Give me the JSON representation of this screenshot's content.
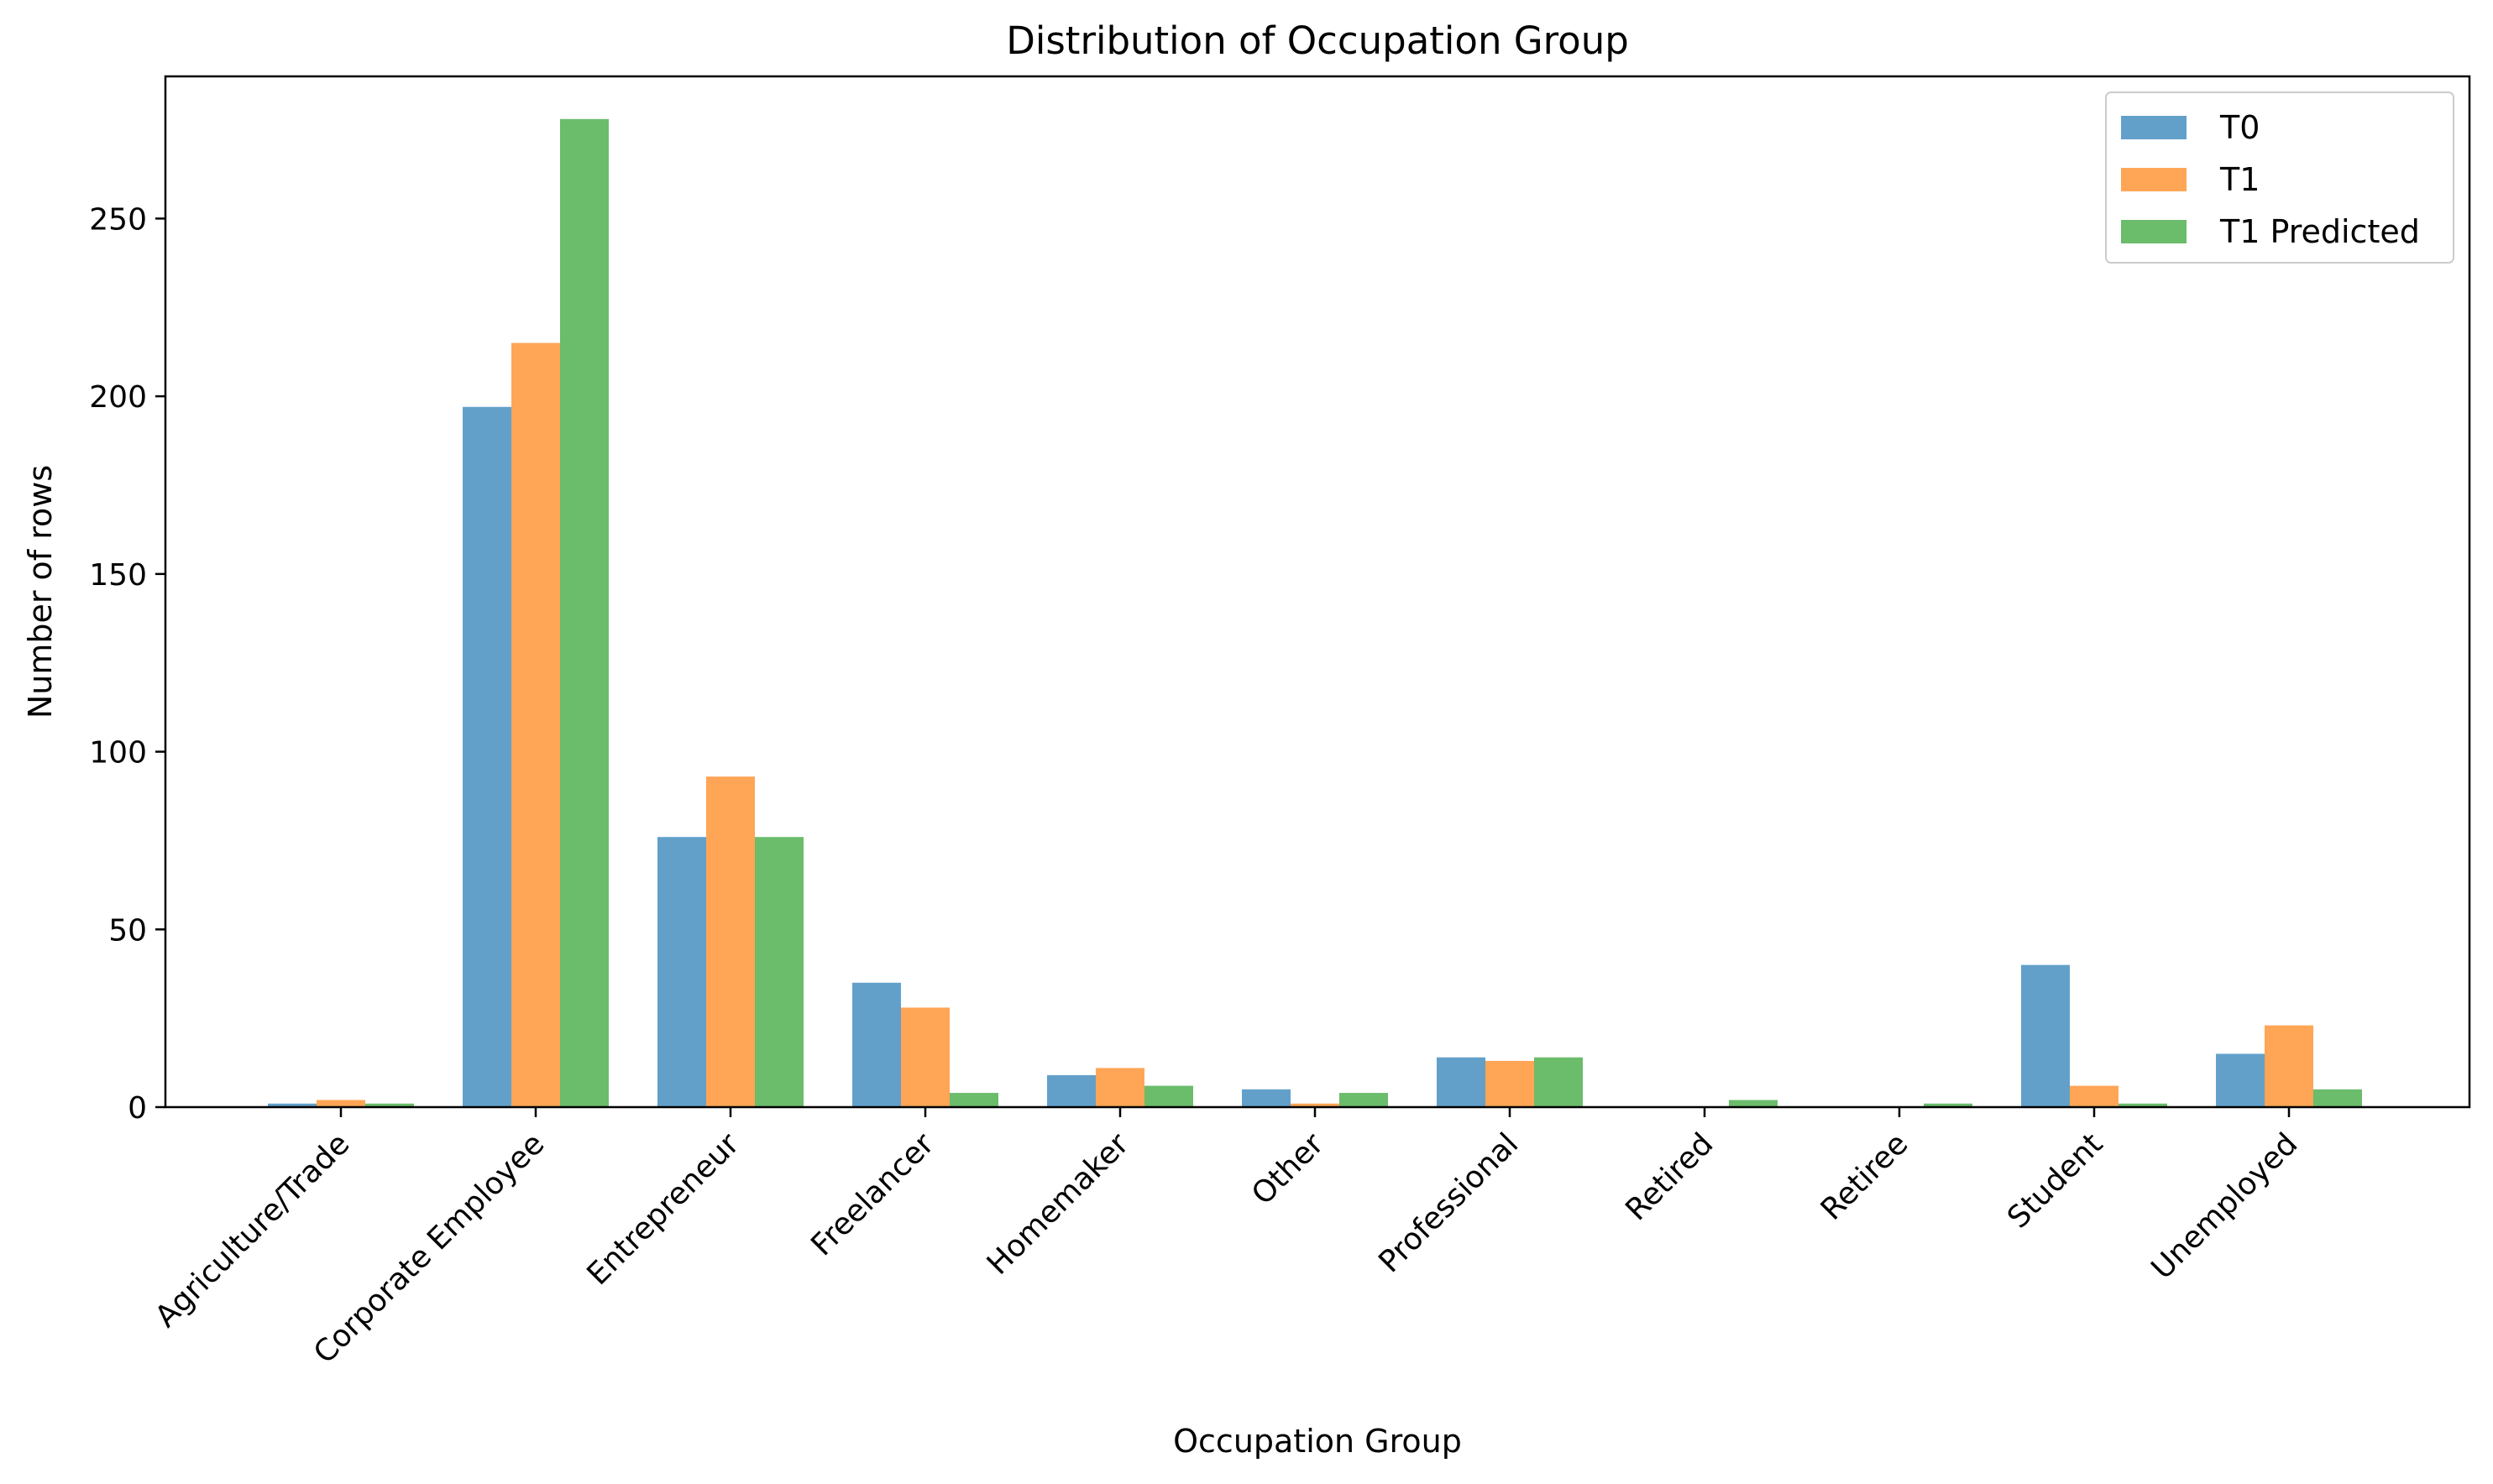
{
  "chart_data": {
    "type": "bar",
    "title": "Distribution of Occupation Group",
    "xlabel": "Occupation Group",
    "ylabel": "Number of rows",
    "categories": [
      "Agriculture/Trade",
      "Corporate Employee",
      "Entrepreneur",
      "Freelancer",
      "Homemaker",
      "Other",
      "Professional",
      "Retired",
      "Retiree",
      "Student",
      "Unemployed"
    ],
    "series": [
      {
        "name": "T0",
        "color": "#1f77b4",
        "values": [
          1,
          197,
          76,
          35,
          9,
          5,
          14,
          0,
          0,
          40,
          15
        ]
      },
      {
        "name": "T1",
        "color": "#ff7f0e",
        "values": [
          2,
          215,
          93,
          28,
          11,
          1,
          13,
          0,
          0,
          6,
          23
        ]
      },
      {
        "name": "T1 Predicted",
        "color": "#2ca02c",
        "values": [
          1,
          278,
          76,
          4,
          6,
          4,
          14,
          2,
          1,
          1,
          5
        ]
      }
    ],
    "ylim": [
      0,
      290
    ],
    "yticks": [
      0,
      50,
      100,
      150,
      200,
      250
    ],
    "bar_opacity": 0.7,
    "grid": false,
    "legend_position": "top-right"
  }
}
